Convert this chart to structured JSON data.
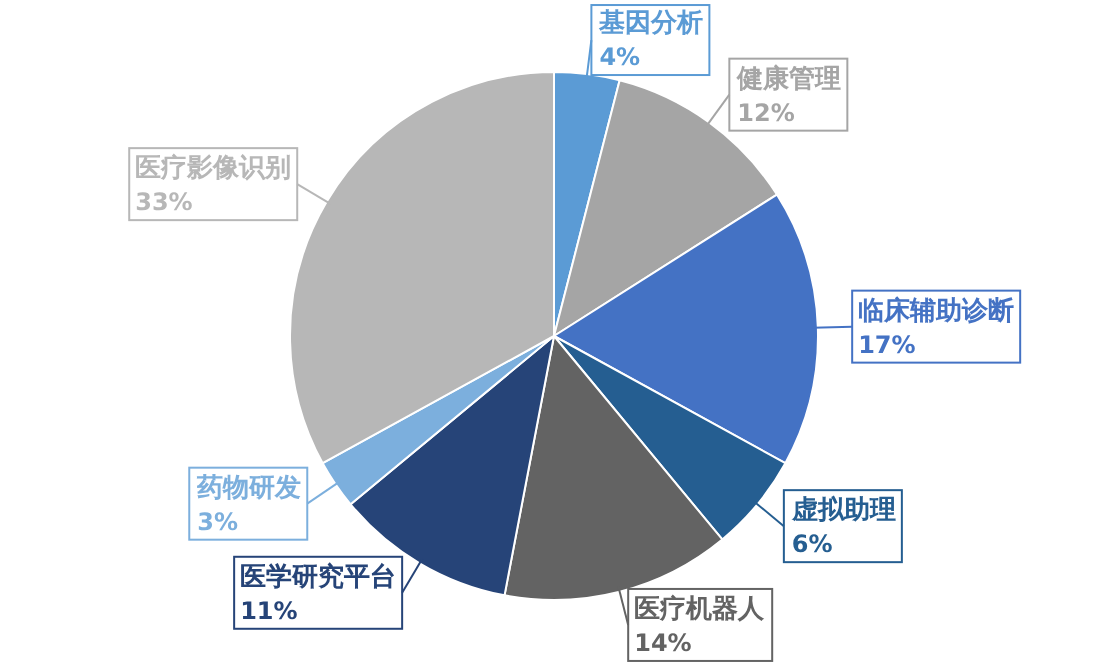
{
  "chart_data": {
    "type": "pie",
    "categories": [
      "基因分析",
      "健康管理",
      "临床辅助诊断",
      "虚拟助理",
      "医疗机器人",
      "医学研究平台",
      "药物研发",
      "医疗影像识别"
    ],
    "values": [
      4,
      12,
      17,
      6,
      14,
      11,
      3,
      33
    ],
    "value_labels": [
      "4%",
      "12%",
      "17%",
      "6%",
      "14%",
      "11%",
      "3%",
      "33%"
    ],
    "colors": [
      "#5b9bd5",
      "#a5a5a5",
      "#4472c4",
      "#255e91",
      "#636363",
      "#264478",
      "#7cafdd",
      "#b7b7b7"
    ],
    "legend": false
  }
}
